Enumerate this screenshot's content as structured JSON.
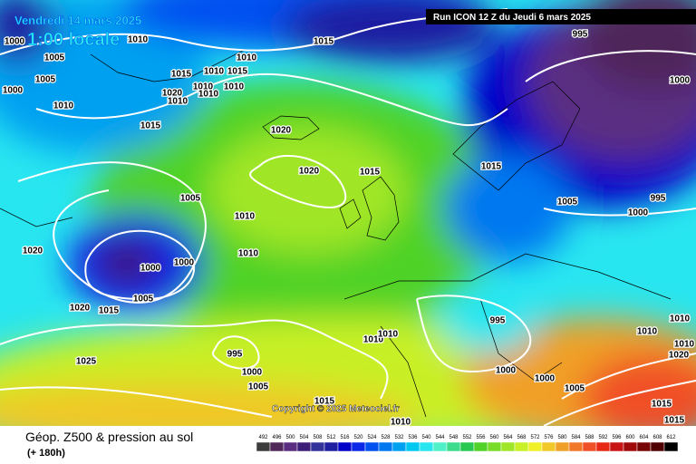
{
  "header": {
    "date": "Vendredi 14 mars 2025",
    "time": "1:00 locale",
    "run": "Run ICON 12 Z du Jeudi 6 mars 2025"
  },
  "copyright": "Copyright © 2025 Meteociel.fr",
  "footer": {
    "title": "Géop. Z500 & pression au sol",
    "lead": "(+ 180h)"
  },
  "isobar_labels": [
    "1000",
    "1010",
    "1015",
    "995",
    "1005",
    "1005",
    "1000",
    "1010",
    "1015",
    "1010",
    "1015",
    "1010",
    "1020",
    "1010",
    "1010",
    "1010",
    "1010",
    "1015",
    "1020",
    "1020",
    "1015",
    "1015",
    "1000",
    "1005",
    "995",
    "1000",
    "1005",
    "1010",
    "1010",
    "1020",
    "1000",
    "1000",
    "1005",
    "1020",
    "1015",
    "995",
    "1010",
    "1010",
    "995",
    "1025",
    "1000",
    "1005",
    "1000",
    "1000",
    "1005",
    "1010",
    "1010",
    "1010",
    "1020",
    "1015",
    "1015",
    "1015",
    "1010"
  ],
  "legend": {
    "labels": [
      492,
      496,
      500,
      504,
      508,
      512,
      516,
      520,
      524,
      528,
      532,
      536,
      540,
      544,
      548,
      552,
      556,
      560,
      564,
      568,
      572,
      576,
      580,
      584,
      588,
      592,
      596,
      600,
      604,
      608,
      612
    ],
    "colors": [
      "#3c3c3c",
      "#50285a",
      "#5a2d82",
      "#3c1e78",
      "#32329b",
      "#1e1ea0",
      "#0000c8",
      "#0a28e6",
      "#0050f0",
      "#0078f0",
      "#00a0f0",
      "#00c8f0",
      "#28e6f0",
      "#50f0c8",
      "#3cdc8c",
      "#28c850",
      "#50d228",
      "#78dc28",
      "#a0e628",
      "#c8f028",
      "#f0f028",
      "#f0c828",
      "#f0a028",
      "#f07828",
      "#f05028",
      "#e62814",
      "#c81414",
      "#a00a0a",
      "#780505",
      "#500000",
      "#000000"
    ]
  }
}
